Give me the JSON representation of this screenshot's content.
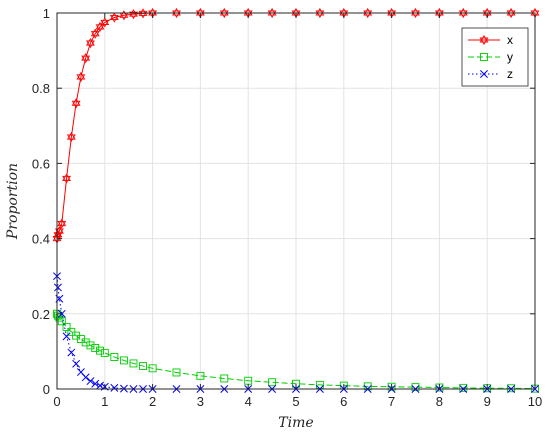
{
  "chart_data": {
    "type": "line",
    "xlabel": "Time",
    "ylabel": "Proportion",
    "xlim": [
      0,
      10
    ],
    "ylim": [
      0,
      1
    ],
    "grid": true,
    "legend_placement": "top-right",
    "x_ticks": [
      "0",
      "1",
      "2",
      "3",
      "4",
      "5",
      "6",
      "7",
      "8",
      "9",
      "10"
    ],
    "y_ticks": [
      "0",
      "0.2",
      "0.4",
      "0.6",
      "0.8",
      "1"
    ],
    "x": [
      0,
      0.02,
      0.05,
      0.1,
      0.2,
      0.3,
      0.4,
      0.5,
      0.6,
      0.7,
      0.8,
      0.9,
      1.0,
      1.2,
      1.4,
      1.6,
      1.8,
      2.0,
      2.5,
      3,
      3.5,
      4,
      4.5,
      5,
      5.5,
      6,
      6.5,
      7,
      7.5,
      8,
      8.5,
      9,
      9.5,
      10
    ],
    "series": [
      {
        "name": "x",
        "color": "#ff0000",
        "line_style": "solid",
        "marker": "hexagram",
        "values": [
          0.4,
          0.41,
          0.42,
          0.44,
          0.56,
          0.67,
          0.76,
          0.83,
          0.88,
          0.92,
          0.945,
          0.963,
          0.975,
          0.988,
          0.994,
          0.997,
          0.999,
          1.0,
          1.0,
          1.0,
          1.0,
          1.0,
          1.0,
          1.0,
          1.0,
          1.0,
          1.0,
          1.0,
          1.0,
          1.0,
          1.0,
          1.0,
          1.0,
          1.0
        ]
      },
      {
        "name": "y",
        "color": "#00cc00",
        "line_style": "dashed",
        "marker": "square",
        "values": [
          0.2,
          0.195,
          0.19,
          0.18,
          0.165,
          0.152,
          0.142,
          0.133,
          0.124,
          0.116,
          0.109,
          0.102,
          0.096,
          0.085,
          0.076,
          0.068,
          0.061,
          0.055,
          0.044,
          0.035,
          0.028,
          0.022,
          0.018,
          0.014,
          0.011,
          0.009,
          0.007,
          0.006,
          0.005,
          0.004,
          0.003,
          0.002,
          0.002,
          0.001
        ]
      },
      {
        "name": "z",
        "color": "#0000ff",
        "line_style": "dotted",
        "marker": "x",
        "values": [
          0.3,
          0.27,
          0.24,
          0.2,
          0.14,
          0.097,
          0.067,
          0.045,
          0.031,
          0.021,
          0.014,
          0.009,
          0.006,
          0.003,
          0.001,
          0.0,
          0.0,
          0.0,
          0.0,
          0.0,
          0.0,
          0.0,
          0.0,
          0.0,
          0.0,
          0.0,
          0.0,
          0.0,
          0.0,
          0.0,
          0.0,
          0.0,
          0.0,
          0.0
        ]
      }
    ]
  }
}
